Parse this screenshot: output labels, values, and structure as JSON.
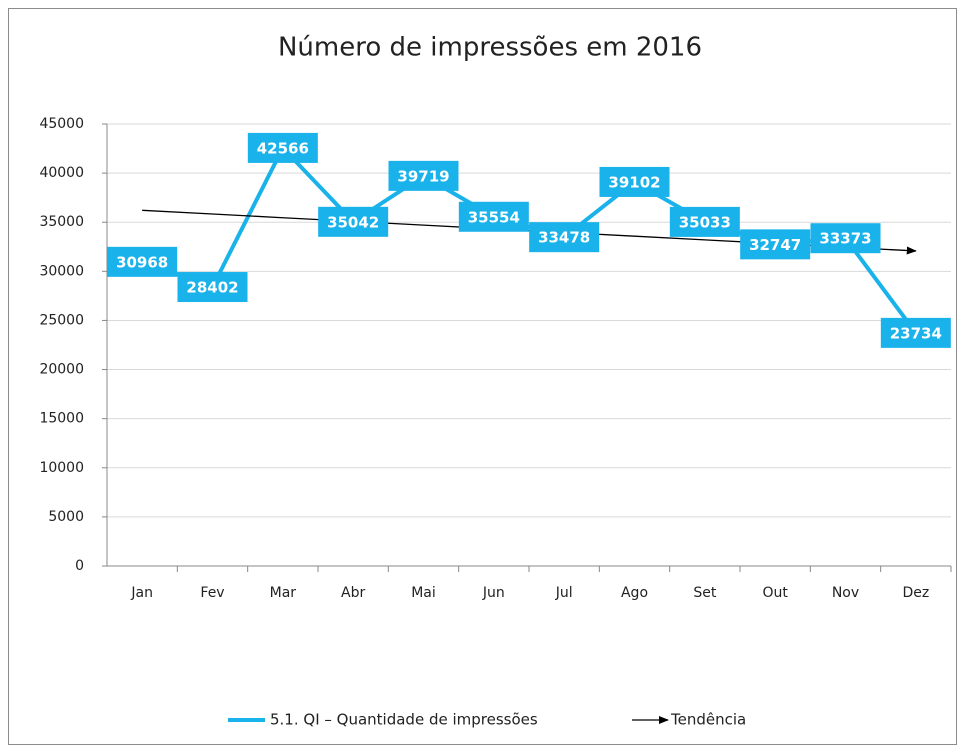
{
  "chart_data": {
    "type": "line",
    "title": "Número de impressões em 2016",
    "categories": [
      "Jan",
      "Fev",
      "Mar",
      "Abr",
      "Mai",
      "Jun",
      "Jul",
      "Ago",
      "Set",
      "Out",
      "Nov",
      "Dez"
    ],
    "series": [
      {
        "name": "5.1. QI – Quantidade de impressões",
        "color": "#1ab2ea",
        "values": [
          30968,
          28402,
          42566,
          35042,
          39719,
          35554,
          33478,
          39102,
          35033,
          32747,
          33373,
          23734
        ]
      },
      {
        "name": "Tendência",
        "color": "#000000",
        "values": [
          36211,
          35835,
          35459,
          35083,
          34707,
          34331,
          33955,
          33579,
          33203,
          32827,
          32451,
          32075
        ]
      }
    ],
    "ylim": [
      0,
      45000
    ],
    "yticks": [
      0,
      5000,
      10000,
      15000,
      20000,
      25000,
      30000,
      35000,
      40000,
      45000
    ],
    "grid": true,
    "legend": "bottom"
  }
}
